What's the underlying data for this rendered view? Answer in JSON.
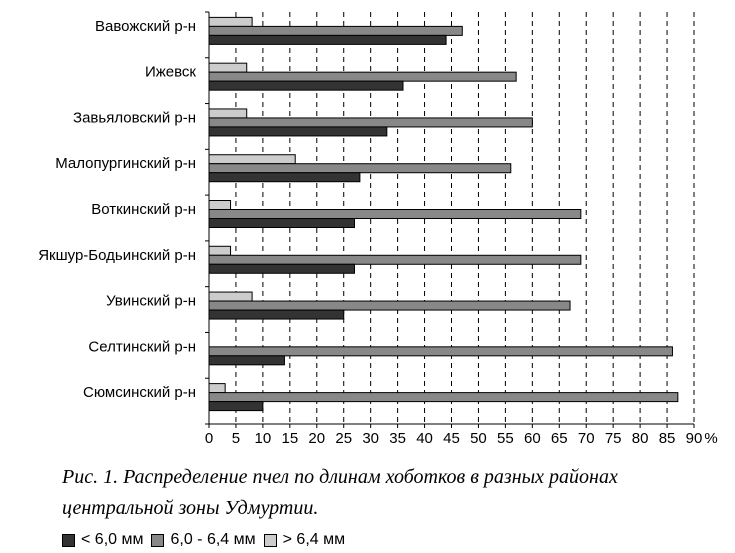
{
  "chart_data": {
    "type": "bar",
    "orientation": "horizontal",
    "categories": [
      "Вавожский р-н",
      "Ижевск",
      "Завьяловский р-н",
      "Малопургинский р-н",
      "Воткинский р-н",
      "Якшур-Бодьинский р-н",
      "Увинский р-н",
      "Селтинский р-н",
      "Сюмсинский р-н"
    ],
    "series": [
      {
        "name": "> 6,4 мм",
        "color": "#cccccc",
        "values": [
          8,
          7,
          7,
          16,
          4,
          4,
          8,
          0,
          3
        ]
      },
      {
        "name": "6,0 - 6,4 мм",
        "color": "#888888",
        "values": [
          47,
          57,
          60,
          56,
          69,
          69,
          67,
          86,
          87
        ]
      },
      {
        "name": "< 6,0 мм",
        "color": "#333333",
        "values": [
          44,
          36,
          33,
          28,
          27,
          27,
          25,
          14,
          10
        ]
      }
    ],
    "xlim": [
      0,
      90
    ],
    "xticks": [
      "0",
      "5",
      "10",
      "15",
      "20",
      "25",
      "30",
      "35",
      "40",
      "45",
      "50",
      "55",
      "60",
      "65",
      "70",
      "75",
      "80",
      "85",
      "90"
    ],
    "xunit": "%",
    "grid": "vertical dashed",
    "legend_position": "bottom-left"
  },
  "caption": {
    "line1": "Рис. 1. Распределение пчел по длинам хоботков в разных районах",
    "line2": "центральной зоны Удмуртии."
  },
  "legend": [
    {
      "label": "< 6,0 мм",
      "color": "#333333"
    },
    {
      "label": "6,0 - 6,4 мм",
      "color": "#888888"
    },
    {
      "label": "> 6,4 мм",
      "color": "#cccccc"
    }
  ]
}
